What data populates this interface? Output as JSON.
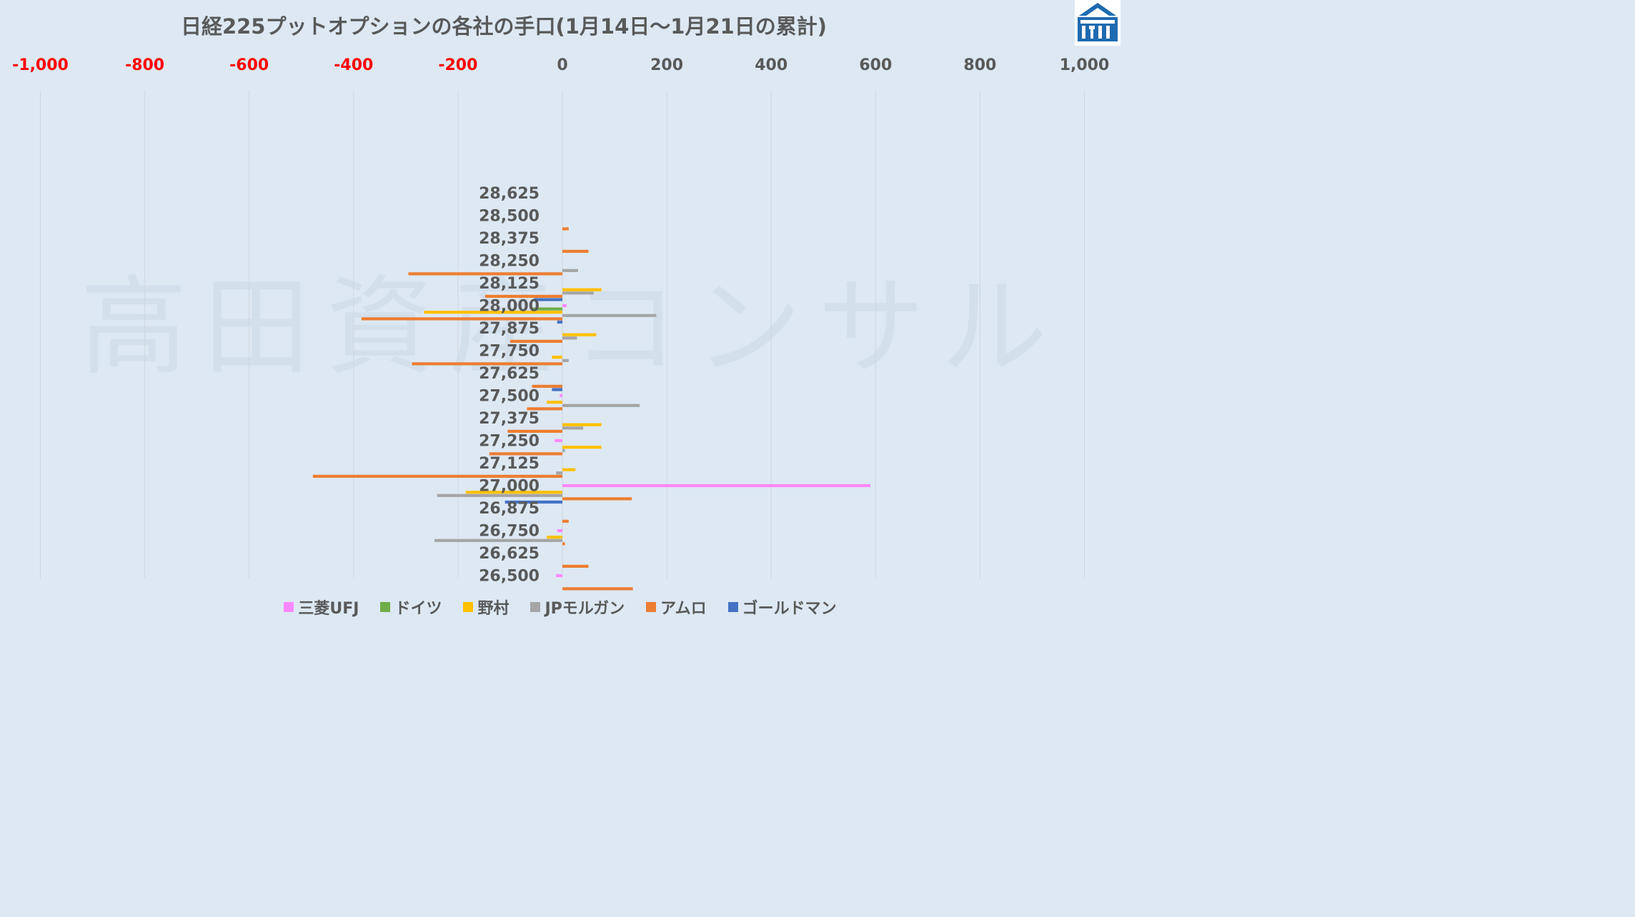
{
  "chart_data": {
    "type": "bar",
    "orientation": "horizontal",
    "title": "日経225プットオプションの各社の手口(1月14日〜1月21日の累計)",
    "watermark": "高田資産コンサル",
    "xlim": [
      -1000,
      1000
    ],
    "x_ticks": [
      "-1,000",
      "-800",
      "-600",
      "-400",
      "-200",
      "0",
      "200",
      "400",
      "600",
      "800",
      "1,000"
    ],
    "x_tick_values": [
      -1000,
      -800,
      -600,
      -400,
      -200,
      0,
      200,
      400,
      600,
      800,
      1000
    ],
    "negative_tick_color": "#ff0000",
    "positive_tick_color": "#595959",
    "grid": "vertical",
    "legend_position": "bottom",
    "categories": [
      "28,625",
      "28,500",
      "28,375",
      "28,250",
      "28,125",
      "28,000",
      "27,875",
      "27,750",
      "27,625",
      "27,500",
      "27,375",
      "27,250",
      "27,125",
      "27,000",
      "26,875",
      "26,750",
      "26,625",
      "26,500"
    ],
    "series": [
      {
        "name": "三菱UFJ",
        "color": "#ff88ff",
        "values": [
          0,
          0,
          0,
          0,
          0,
          8,
          0,
          0,
          0,
          -5,
          0,
          -15,
          0,
          590,
          0,
          -10,
          0,
          -12
        ]
      },
      {
        "name": "ドイツ",
        "color": "#70ad47",
        "values": [
          0,
          0,
          0,
          0,
          0,
          -60,
          0,
          0,
          0,
          0,
          0,
          0,
          0,
          0,
          0,
          0,
          0,
          0
        ]
      },
      {
        "name": "野村",
        "color": "#ffc000",
        "values": [
          0,
          0,
          0,
          0,
          75,
          -265,
          65,
          -20,
          0,
          -30,
          75,
          75,
          25,
          -185,
          0,
          -30,
          0,
          0
        ]
      },
      {
        "name": "JPモルガン",
        "color": "#a5a5a5",
        "values": [
          0,
          0,
          0,
          30,
          60,
          180,
          28,
          12,
          0,
          148,
          40,
          5,
          -12,
          -240,
          0,
          -245,
          0,
          0
        ]
      },
      {
        "name": "アムロ",
        "color": "#ed7d31",
        "values": [
          0,
          12,
          50,
          -295,
          -148,
          -385,
          -100,
          -288,
          -58,
          -68,
          -105,
          -140,
          -478,
          133,
          12,
          5,
          50,
          135
        ]
      },
      {
        "name": "ゴールドマン",
        "color": "#4472c4",
        "values": [
          0,
          0,
          0,
          0,
          -55,
          -10,
          0,
          0,
          -20,
          0,
          0,
          0,
          0,
          -110,
          0,
          0,
          0,
          0
        ]
      }
    ]
  }
}
